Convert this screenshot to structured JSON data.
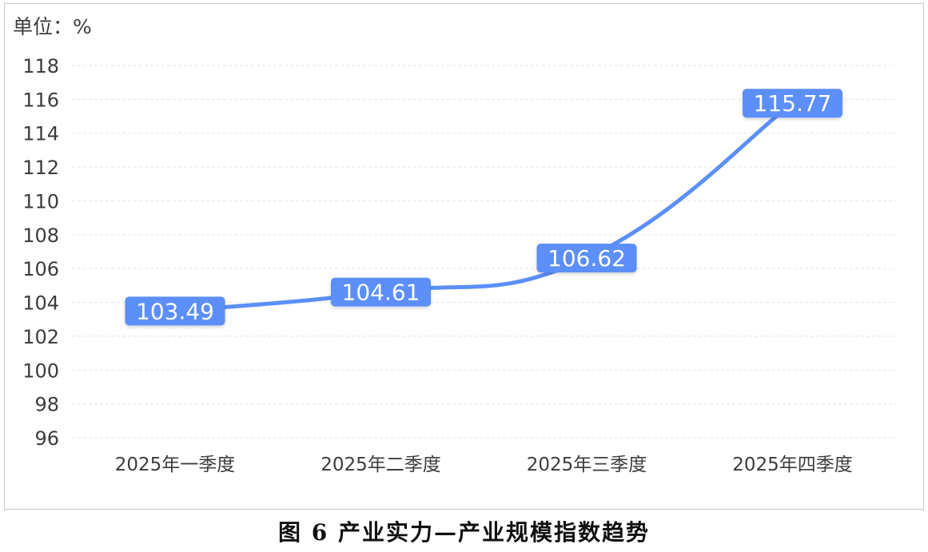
{
  "unit_label": "单位：%",
  "caption": "图 6 产业实力—产业规模指数趋势",
  "colors": {
    "line": "#5b8ff9",
    "label_bg": "#5b8ff9",
    "label_text": "#ffffff",
    "grid": "#e3e3e3",
    "axis_text": "#3c3c3c"
  },
  "chart_data": {
    "type": "line",
    "categories": [
      "2025年一季度",
      "2025年二季度",
      "2025年三季度",
      "2025年四季度"
    ],
    "series": [
      {
        "values": [
          103.49,
          104.61,
          106.62,
          115.77
        ],
        "labels": [
          "103.49",
          "104.61",
          "106.62",
          "115.77"
        ]
      }
    ],
    "y_ticks": [
      96,
      98,
      100,
      102,
      104,
      106,
      108,
      110,
      112,
      114,
      116,
      118
    ],
    "ylim": [
      96,
      118
    ],
    "grid": true,
    "grid_style": "dashed",
    "smooth": true,
    "data_labels": true
  }
}
